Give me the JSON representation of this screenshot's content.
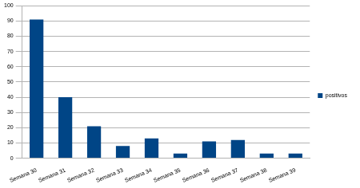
{
  "chart_data": {
    "type": "bar",
    "categories": [
      "Semana 30",
      "Semana 31",
      "Semana 32",
      "Semana 33",
      "Semana 34",
      "Semana 35",
      "Semana 36",
      "Semana 37",
      "Semana 38",
      "Semana 39"
    ],
    "series": [
      {
        "name": "positivos",
        "color": "#004586",
        "values": [
          91,
          40,
          21,
          8,
          13,
          3,
          11,
          12,
          3,
          3
        ]
      }
    ],
    "ylim": [
      0,
      100
    ],
    "yticks": [
      0,
      10,
      20,
      30,
      40,
      50,
      60,
      70,
      80,
      90,
      100
    ],
    "grid": true,
    "legend": "right"
  }
}
